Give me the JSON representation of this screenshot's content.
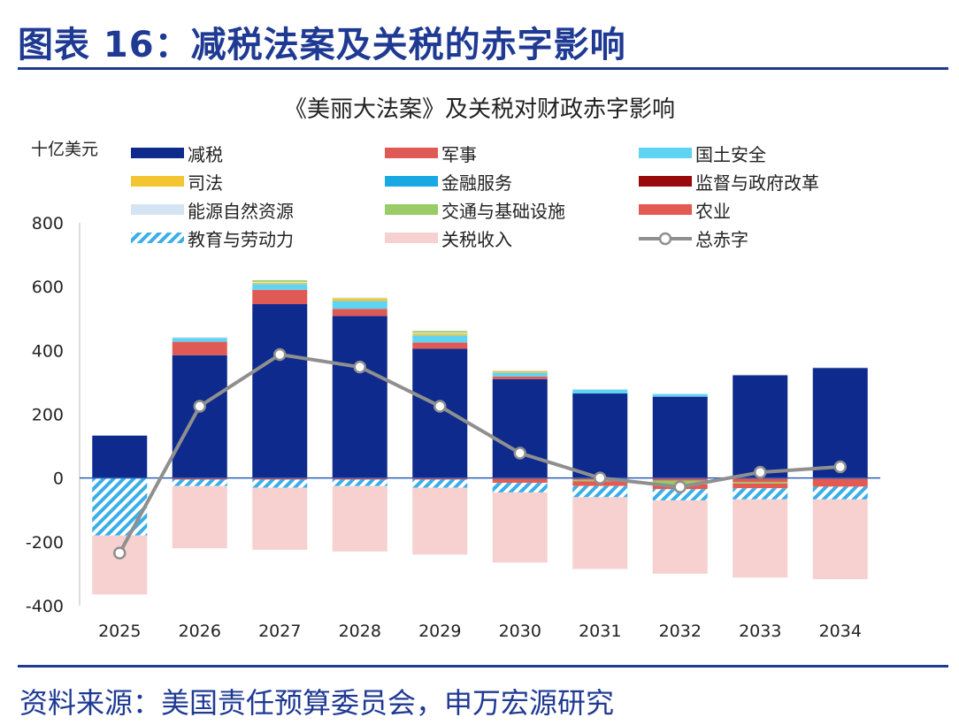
{
  "header": {
    "title": "图表 16：减税法案及关税的赤字影响"
  },
  "footer": {
    "source": "资料来源：美国责任预算委员会，申万宏源研究"
  },
  "chart_data": {
    "type": "bar",
    "stacked": true,
    "title": "《美丽大法案》及关税对财政赤字影响",
    "ylabel": "十亿美元",
    "ylim": [
      -400,
      800
    ],
    "yticks": [
      -400,
      -200,
      0,
      200,
      400,
      600,
      800
    ],
    "ytick_labels": [
      "-400",
      "-200",
      "0",
      "200",
      "400",
      "600",
      "800"
    ],
    "grid": false,
    "legend_position": "top",
    "categories": [
      "2025",
      "2026",
      "2027",
      "2028",
      "2029",
      "2030",
      "2031",
      "2032",
      "2033",
      "2034"
    ],
    "series": [
      {
        "name": "减税",
        "color": "#0d2a8c",
        "pattern": "solid",
        "values": [
          133,
          385,
          545,
          508,
          405,
          310,
          265,
          255,
          322,
          345
        ]
      },
      {
        "name": "军事",
        "color": "#e05a55",
        "pattern": "solid",
        "values": [
          0,
          42,
          45,
          22,
          20,
          8,
          -5,
          -8,
          -12,
          -12
        ]
      },
      {
        "name": "国土安全",
        "color": "#5fd3f3",
        "pattern": "solid",
        "values": [
          0,
          12,
          18,
          25,
          22,
          12,
          12,
          8,
          0,
          0
        ]
      },
      {
        "name": "司法",
        "color": "#f2c531",
        "pattern": "solid",
        "values": [
          0,
          0,
          4,
          8,
          6,
          5,
          0,
          0,
          0,
          0
        ]
      },
      {
        "name": "金融服务",
        "color": "#18a9e4",
        "pattern": "solid",
        "values": [
          0,
          0,
          0,
          0,
          0,
          0,
          0,
          0,
          0,
          0
        ]
      },
      {
        "name": "监督与政府改革",
        "color": "#9a0a0a",
        "pattern": "solid",
        "values": [
          0,
          0,
          0,
          0,
          0,
          0,
          0,
          0,
          0,
          0
        ]
      },
      {
        "name": "能源自然资源",
        "color": "#d5e4f2",
        "pattern": "solid",
        "values": [
          0,
          3,
          3,
          3,
          3,
          3,
          2,
          2,
          2,
          2
        ]
      },
      {
        "name": "交通与基础设施",
        "color": "#99cc66",
        "pattern": "solid",
        "values": [
          0,
          0,
          5,
          0,
          5,
          0,
          -5,
          -12,
          -5,
          0
        ]
      },
      {
        "name": "农业",
        "color": "#e45a52",
        "pattern": "solid",
        "values": [
          0,
          -5,
          -5,
          -5,
          -5,
          -15,
          -15,
          -15,
          -15,
          -15
        ]
      },
      {
        "name": "教育与劳动力",
        "color": "#3aaee8",
        "pattern": "hatch",
        "values": [
          -180,
          -20,
          -25,
          -20,
          -25,
          -30,
          -35,
          -35,
          -35,
          -40
        ]
      },
      {
        "name": "关税收入",
        "color": "#f7d0d0",
        "pattern": "solid",
        "values": [
          -185,
          -195,
          -195,
          -205,
          -210,
          -220,
          -225,
          -230,
          -245,
          -250
        ]
      }
    ],
    "line": {
      "name": "总赤字",
      "color": "#8f8f8f",
      "values": [
        -235,
        225,
        387,
        348,
        225,
        78,
        0,
        -28,
        18,
        35
      ]
    }
  }
}
